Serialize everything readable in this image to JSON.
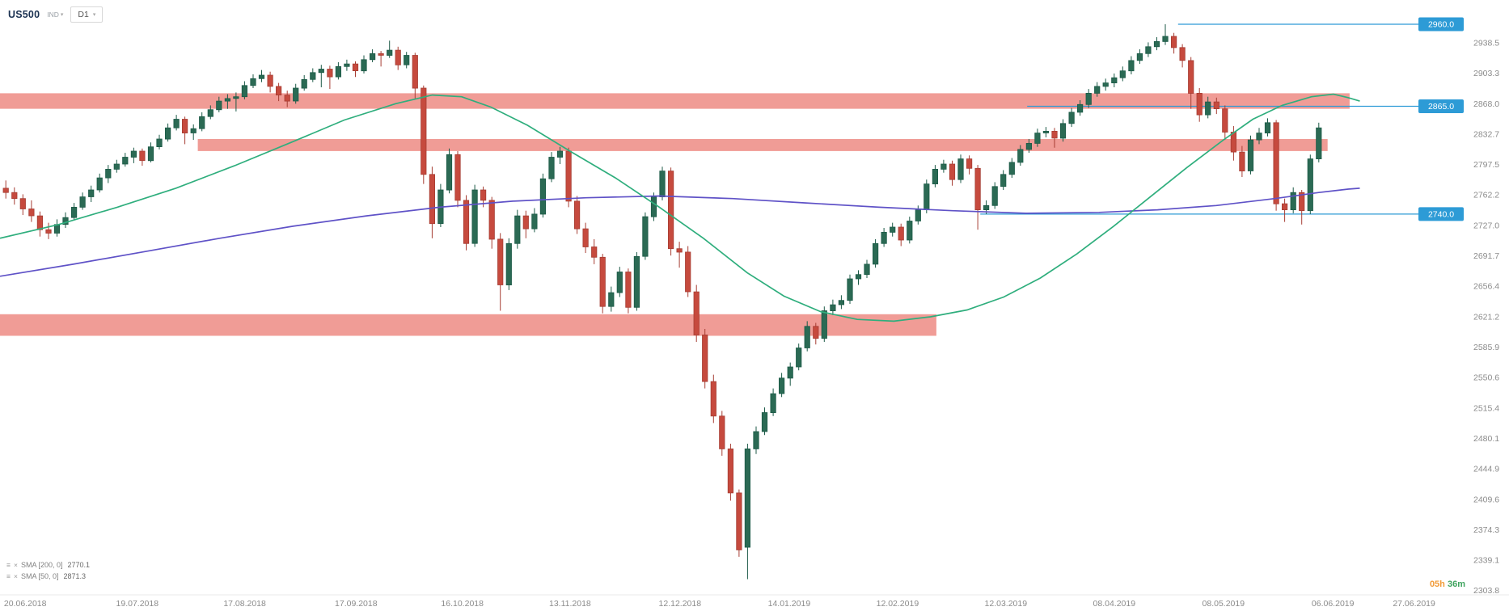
{
  "toolbar": {
    "symbol": "US500",
    "instrument_type": "IND",
    "timeframe": "D1"
  },
  "legend": {
    "sma200_label": "SMA [200, 0]",
    "sma200_value": "2770.1",
    "sma50_label": "SMA [50, 0]",
    "sma50_value": "2871.3"
  },
  "timer": {
    "hours": "05h",
    "minutes": "36m"
  },
  "chart_data": {
    "type": "candlestick",
    "symbol": "US500",
    "timeframe": "D1",
    "ylim": [
      2297,
      2975
    ],
    "grid": "off",
    "colors": {
      "up_stroke": "#1c5a47",
      "up_fill": "#2b6a54",
      "down_stroke": "#a63d33",
      "down_fill": "#c64a3e",
      "zone": "rgba(231,96,86,0.62)",
      "price_line": "#2d9bd6",
      "timer_hours": "#f29b38",
      "timer_minutes": "#3fa45f"
    },
    "y_ticks": [
      2938.5,
      2903.3,
      2868.0,
      2832.7,
      2797.5,
      2762.2,
      2727.0,
      2691.7,
      2656.4,
      2621.2,
      2585.9,
      2550.6,
      2515.4,
      2480.1,
      2444.9,
      2409.6,
      2374.3,
      2339.1,
      2303.8
    ],
    "x_ticks": [
      {
        "label": "20.06.2018",
        "pos": 0.0172
      },
      {
        "label": "19.07.2018",
        "pos": 0.0937
      },
      {
        "label": "17.08.2018",
        "pos": 0.167
      },
      {
        "label": "17.09.2018",
        "pos": 0.243
      },
      {
        "label": "16.10.2018",
        "pos": 0.3155
      },
      {
        "label": "13.11.2018",
        "pos": 0.389
      },
      {
        "label": "12.12.2018",
        "pos": 0.464
      },
      {
        "label": "14.01.2019",
        "pos": 0.5386
      },
      {
        "label": "12.02.2019",
        "pos": 0.6125
      },
      {
        "label": "12.03.2019",
        "pos": 0.6864
      },
      {
        "label": "08.04.2019",
        "pos": 0.7604
      },
      {
        "label": "08.05.2019",
        "pos": 0.8349
      },
      {
        "label": "06.06.2019",
        "pos": 0.9096
      },
      {
        "label": "27.06.2019",
        "pos": 0.965
      }
    ],
    "price_lines": [
      {
        "value": 2960.0,
        "label": "2960.0",
        "from": 0.804
      },
      {
        "value": 2865.0,
        "label": "2865.0",
        "from": 0.701
      },
      {
        "value": 2740.0,
        "label": "2740.0",
        "from": 0.669
      }
    ],
    "zones": [
      {
        "top": 2880,
        "bottom": 2862,
        "from": 0,
        "to": 0.921
      },
      {
        "top": 2827,
        "bottom": 2813,
        "from": 0.135,
        "to": 0.906
      },
      {
        "top": 2624,
        "bottom": 2599,
        "from": 0,
        "to": 0.639
      }
    ],
    "sma50": {
      "name": "SMA 50",
      "color": "#2fae7d",
      "points": [
        [
          0,
          2712
        ],
        [
          0.04,
          2728
        ],
        [
          0.08,
          2748
        ],
        [
          0.12,
          2770
        ],
        [
          0.16,
          2796
        ],
        [
          0.2,
          2824
        ],
        [
          0.235,
          2849
        ],
        [
          0.27,
          2868
        ],
        [
          0.295,
          2878
        ],
        [
          0.315,
          2876
        ],
        [
          0.335,
          2864
        ],
        [
          0.36,
          2843
        ],
        [
          0.39,
          2812
        ],
        [
          0.42,
          2782
        ],
        [
          0.45,
          2748
        ],
        [
          0.48,
          2712
        ],
        [
          0.51,
          2672
        ],
        [
          0.535,
          2645
        ],
        [
          0.56,
          2627
        ],
        [
          0.585,
          2618
        ],
        [
          0.61,
          2616
        ],
        [
          0.635,
          2621
        ],
        [
          0.66,
          2629
        ],
        [
          0.685,
          2644
        ],
        [
          0.71,
          2666
        ],
        [
          0.735,
          2694
        ],
        [
          0.76,
          2726
        ],
        [
          0.785,
          2760
        ],
        [
          0.81,
          2794
        ],
        [
          0.835,
          2826
        ],
        [
          0.855,
          2850
        ],
        [
          0.875,
          2866
        ],
        [
          0.895,
          2876
        ],
        [
          0.91,
          2879
        ],
        [
          0.92,
          2875
        ],
        [
          0.928,
          2871
        ]
      ]
    },
    "sma200": {
      "name": "SMA 200",
      "color": "#5f52c7",
      "points": [
        [
          0,
          2668
        ],
        [
          0.05,
          2682
        ],
        [
          0.1,
          2697
        ],
        [
          0.15,
          2712
        ],
        [
          0.2,
          2726
        ],
        [
          0.25,
          2738
        ],
        [
          0.3,
          2748
        ],
        [
          0.35,
          2755
        ],
        [
          0.4,
          2759
        ],
        [
          0.45,
          2761
        ],
        [
          0.5,
          2758
        ],
        [
          0.55,
          2753
        ],
        [
          0.6,
          2748
        ],
        [
          0.65,
          2744
        ],
        [
          0.7,
          2741
        ],
        [
          0.75,
          2742
        ],
        [
          0.79,
          2745
        ],
        [
          0.83,
          2750
        ],
        [
          0.87,
          2758
        ],
        [
          0.9,
          2765
        ],
        [
          0.92,
          2769
        ],
        [
          0.928,
          2770
        ]
      ]
    },
    "candles_span": [
      0.004,
      0.9
    ],
    "candles": [
      [
        2770,
        2779,
        2758,
        2765
      ],
      [
        2765,
        2771,
        2751,
        2758
      ],
      [
        2758,
        2763,
        2739,
        2746
      ],
      [
        2746,
        2756,
        2731,
        2738
      ],
      [
        2738,
        2743,
        2714,
        2722
      ],
      [
        2722,
        2730,
        2711,
        2718
      ],
      [
        2718,
        2734,
        2714,
        2728
      ],
      [
        2728,
        2742,
        2724,
        2736
      ],
      [
        2736,
        2753,
        2733,
        2748
      ],
      [
        2748,
        2765,
        2745,
        2760
      ],
      [
        2760,
        2773,
        2754,
        2768
      ],
      [
        2768,
        2787,
        2765,
        2782
      ],
      [
        2782,
        2797,
        2776,
        2792
      ],
      [
        2792,
        2803,
        2788,
        2798
      ],
      [
        2798,
        2811,
        2795,
        2806
      ],
      [
        2806,
        2817,
        2799,
        2813
      ],
      [
        2813,
        2816,
        2796,
        2802
      ],
      [
        2802,
        2823,
        2800,
        2818
      ],
      [
        2818,
        2832,
        2815,
        2827
      ],
      [
        2827,
        2845,
        2824,
        2840
      ],
      [
        2840,
        2855,
        2837,
        2850
      ],
      [
        2850,
        2853,
        2821,
        2834
      ],
      [
        2834,
        2844,
        2826,
        2839
      ],
      [
        2839,
        2858,
        2836,
        2853
      ],
      [
        2853,
        2866,
        2850,
        2861
      ],
      [
        2861,
        2876,
        2858,
        2871
      ],
      [
        2871,
        2879,
        2862,
        2874
      ],
      [
        2874,
        2881,
        2859,
        2876
      ],
      [
        2876,
        2894,
        2873,
        2889
      ],
      [
        2889,
        2902,
        2886,
        2897
      ],
      [
        2897,
        2907,
        2893,
        2901
      ],
      [
        2901,
        2905,
        2881,
        2888
      ],
      [
        2888,
        2892,
        2871,
        2878
      ],
      [
        2878,
        2883,
        2864,
        2871
      ],
      [
        2871,
        2891,
        2868,
        2886
      ],
      [
        2886,
        2901,
        2883,
        2896
      ],
      [
        2896,
        2909,
        2893,
        2904
      ],
      [
        2904,
        2913,
        2887,
        2908
      ],
      [
        2908,
        2912,
        2885,
        2899
      ],
      [
        2899,
        2916,
        2896,
        2911
      ],
      [
        2911,
        2919,
        2906,
        2914
      ],
      [
        2914,
        2917,
        2899,
        2906
      ],
      [
        2906,
        2924,
        2903,
        2919
      ],
      [
        2919,
        2931,
        2916,
        2926
      ],
      [
        2926,
        2929,
        2911,
        2924
      ],
      [
        2924,
        2941,
        2921,
        2930
      ],
      [
        2930,
        2934,
        2907,
        2913
      ],
      [
        2913,
        2928,
        2909,
        2924
      ],
      [
        2924,
        2927,
        2874,
        2886
      ],
      [
        2886,
        2889,
        2775,
        2786
      ],
      [
        2786,
        2795,
        2712,
        2729
      ],
      [
        2729,
        2775,
        2725,
        2768
      ],
      [
        2768,
        2816,
        2764,
        2809
      ],
      [
        2809,
        2813,
        2748,
        2756
      ],
      [
        2756,
        2762,
        2698,
        2706
      ],
      [
        2706,
        2774,
        2702,
        2768
      ],
      [
        2768,
        2772,
        2748,
        2756
      ],
      [
        2756,
        2760,
        2700,
        2711
      ],
      [
        2711,
        2718,
        2628,
        2658
      ],
      [
        2658,
        2712,
        2652,
        2706
      ],
      [
        2706,
        2745,
        2700,
        2738
      ],
      [
        2738,
        2744,
        2712,
        2723
      ],
      [
        2723,
        2747,
        2719,
        2740
      ],
      [
        2740,
        2787,
        2736,
        2781
      ],
      [
        2781,
        2812,
        2777,
        2806
      ],
      [
        2806,
        2818,
        2798,
        2813
      ],
      [
        2813,
        2817,
        2748,
        2755
      ],
      [
        2755,
        2761,
        2717,
        2723
      ],
      [
        2723,
        2730,
        2695,
        2702
      ],
      [
        2702,
        2711,
        2682,
        2690
      ],
      [
        2690,
        2694,
        2625,
        2633
      ],
      [
        2633,
        2656,
        2627,
        2649
      ],
      [
        2649,
        2679,
        2644,
        2673
      ],
      [
        2673,
        2677,
        2625,
        2632
      ],
      [
        2632,
        2696,
        2628,
        2691
      ],
      [
        2691,
        2742,
        2687,
        2737
      ],
      [
        2737,
        2765,
        2732,
        2760
      ],
      [
        2760,
        2795,
        2756,
        2790
      ],
      [
        2790,
        2794,
        2692,
        2700
      ],
      [
        2700,
        2708,
        2678,
        2696
      ],
      [
        2696,
        2703,
        2644,
        2650
      ],
      [
        2650,
        2658,
        2592,
        2600
      ],
      [
        2600,
        2607,
        2538,
        2546
      ],
      [
        2546,
        2554,
        2498,
        2506
      ],
      [
        2506,
        2512,
        2460,
        2468
      ],
      [
        2468,
        2474,
        2408,
        2417
      ],
      [
        2417,
        2421,
        2343,
        2351
      ],
      [
        2354,
        2474,
        2317,
        2468
      ],
      [
        2468,
        2494,
        2462,
        2488
      ],
      [
        2488,
        2516,
        2484,
        2510
      ],
      [
        2510,
        2538,
        2506,
        2532
      ],
      [
        2532,
        2556,
        2528,
        2550
      ],
      [
        2550,
        2568,
        2541,
        2563
      ],
      [
        2563,
        2590,
        2559,
        2585
      ],
      [
        2585,
        2616,
        2581,
        2610
      ],
      [
        2610,
        2614,
        2589,
        2596
      ],
      [
        2596,
        2633,
        2592,
        2628
      ],
      [
        2628,
        2641,
        2623,
        2635
      ],
      [
        2635,
        2646,
        2630,
        2640
      ],
      [
        2640,
        2670,
        2636,
        2665
      ],
      [
        2665,
        2675,
        2658,
        2670
      ],
      [
        2670,
        2687,
        2666,
        2682
      ],
      [
        2682,
        2711,
        2678,
        2706
      ],
      [
        2706,
        2724,
        2702,
        2719
      ],
      [
        2719,
        2730,
        2714,
        2725
      ],
      [
        2725,
        2729,
        2703,
        2710
      ],
      [
        2710,
        2737,
        2706,
        2732
      ],
      [
        2732,
        2750,
        2728,
        2745
      ],
      [
        2745,
        2780,
        2741,
        2775
      ],
      [
        2775,
        2797,
        2771,
        2792
      ],
      [
        2792,
        2803,
        2788,
        2798
      ],
      [
        2798,
        2802,
        2773,
        2780
      ],
      [
        2780,
        2809,
        2776,
        2804
      ],
      [
        2804,
        2808,
        2786,
        2793
      ],
      [
        2793,
        2797,
        2722,
        2745
      ],
      [
        2745,
        2756,
        2740,
        2750
      ],
      [
        2750,
        2777,
        2746,
        2772
      ],
      [
        2772,
        2791,
        2768,
        2786
      ],
      [
        2786,
        2805,
        2782,
        2800
      ],
      [
        2800,
        2820,
        2796,
        2815
      ],
      [
        2815,
        2827,
        2811,
        2822
      ],
      [
        2822,
        2839,
        2818,
        2834
      ],
      [
        2834,
        2841,
        2829,
        2836
      ],
      [
        2836,
        2840,
        2817,
        2828
      ],
      [
        2828,
        2850,
        2824,
        2845
      ],
      [
        2845,
        2863,
        2841,
        2858
      ],
      [
        2858,
        2872,
        2854,
        2867
      ],
      [
        2867,
        2885,
        2863,
        2880
      ],
      [
        2880,
        2893,
        2876,
        2888
      ],
      [
        2888,
        2897,
        2883,
        2892
      ],
      [
        2892,
        2903,
        2887,
        2898
      ],
      [
        2898,
        2911,
        2894,
        2906
      ],
      [
        2906,
        2923,
        2902,
        2918
      ],
      [
        2918,
        2931,
        2914,
        2926
      ],
      [
        2926,
        2939,
        2922,
        2934
      ],
      [
        2934,
        2945,
        2930,
        2940
      ],
      [
        2940,
        2960,
        2936,
        2946
      ],
      [
        2946,
        2950,
        2926,
        2933
      ],
      [
        2933,
        2937,
        2910,
        2918
      ],
      [
        2918,
        2922,
        2862,
        2880
      ],
      [
        2880,
        2886,
        2847,
        2855
      ],
      [
        2855,
        2876,
        2851,
        2870
      ],
      [
        2870,
        2875,
        2856,
        2862
      ],
      [
        2862,
        2866,
        2826,
        2835
      ],
      [
        2835,
        2842,
        2802,
        2812
      ],
      [
        2812,
        2819,
        2783,
        2790
      ],
      [
        2790,
        2831,
        2786,
        2826
      ],
      [
        2826,
        2840,
        2821,
        2834
      ],
      [
        2834,
        2851,
        2830,
        2846
      ],
      [
        2846,
        2849,
        2744,
        2752
      ],
      [
        2752,
        2758,
        2731,
        2745
      ],
      [
        2745,
        2771,
        2741,
        2765
      ],
      [
        2765,
        2768,
        2728,
        2744
      ],
      [
        2744,
        2809,
        2740,
        2804
      ],
      [
        2804,
        2846,
        2800,
        2840
      ]
    ]
  }
}
